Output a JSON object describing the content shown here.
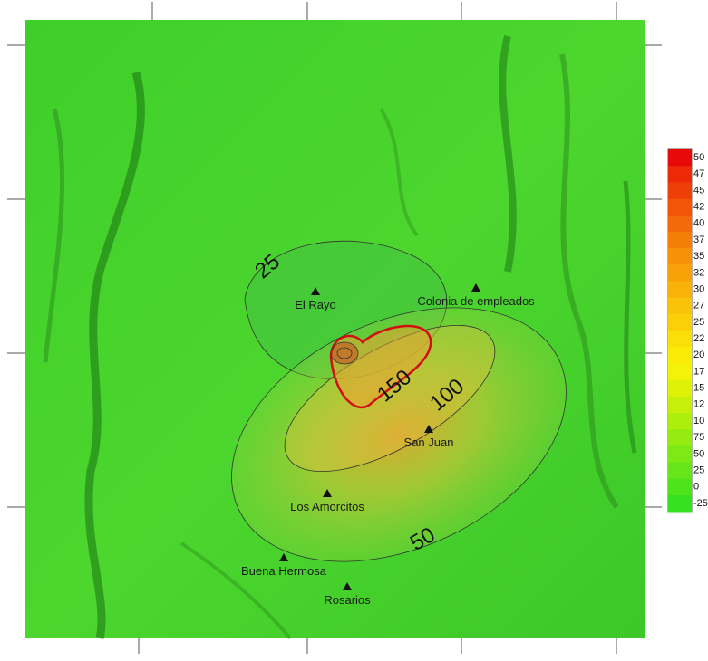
{
  "places": [
    {
      "label": "El Rayo"
    },
    {
      "label": "Colonia de empleados"
    },
    {
      "label": "San Juan"
    },
    {
      "label": "Los Amorcitos"
    },
    {
      "label": "Buena Hermosa"
    },
    {
      "label": "Rosarios"
    }
  ],
  "contour_labels": [
    "25",
    "150",
    "100",
    "50"
  ],
  "legend": [
    {
      "label": "50",
      "color": "#e80a0a"
    },
    {
      "label": "47",
      "color": "#ec2a08"
    },
    {
      "label": "45",
      "color": "#ef3f08"
    },
    {
      "label": "42",
      "color": "#f15508"
    },
    {
      "label": "40",
      "color": "#f36a08"
    },
    {
      "label": "37",
      "color": "#f57e08"
    },
    {
      "label": "35",
      "color": "#f79208"
    },
    {
      "label": "32",
      "color": "#f8a208"
    },
    {
      "label": "30",
      "color": "#f9b208"
    },
    {
      "label": "27",
      "color": "#fac208"
    },
    {
      "label": "25",
      "color": "#fbd008"
    },
    {
      "label": "22",
      "color": "#fbdf08"
    },
    {
      "label": "20",
      "color": "#fbec08"
    },
    {
      "label": "17",
      "color": "#f3f208"
    },
    {
      "label": "15",
      "color": "#def208"
    },
    {
      "label": "12",
      "color": "#c6f00a"
    },
    {
      "label": "10",
      "color": "#aeee0c"
    },
    {
      "label": "75",
      "color": "#96ec10"
    },
    {
      "label": "50",
      "color": "#7ee914"
    },
    {
      "label": "25",
      "color": "#66e618"
    },
    {
      "label": "0",
      "color": "#4ee41c"
    },
    {
      "label": "-25",
      "color": "#36e220"
    }
  ]
}
